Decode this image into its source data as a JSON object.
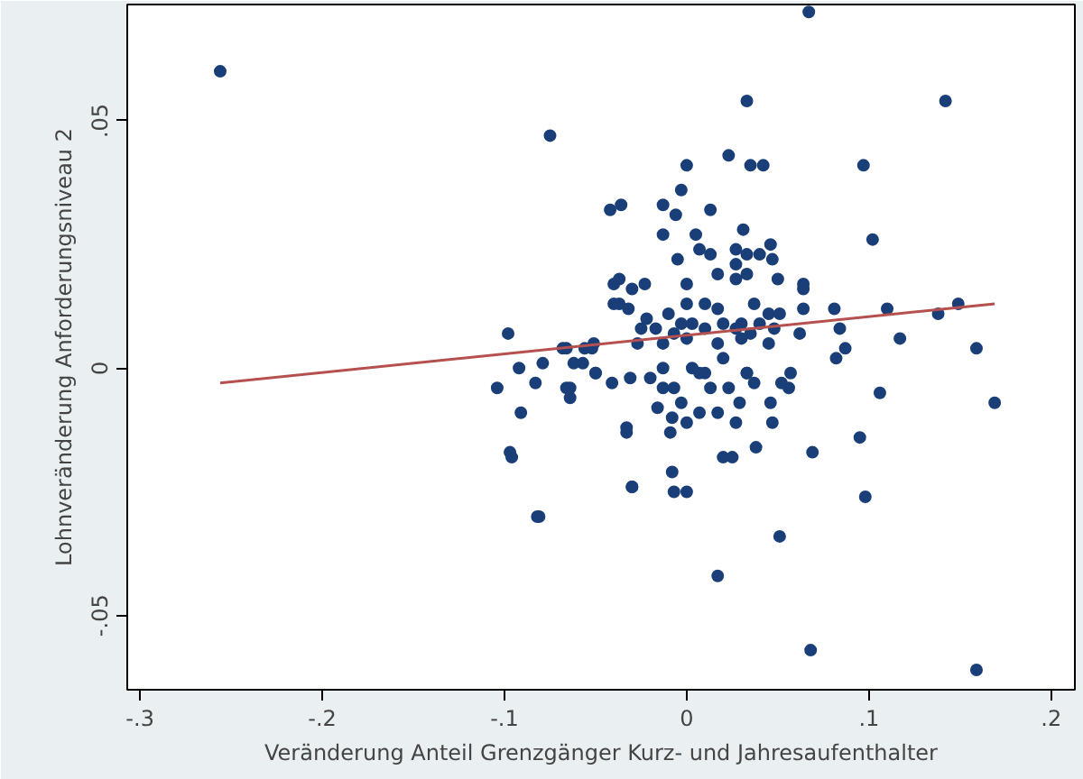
{
  "chart_data": {
    "type": "scatter",
    "xlabel": "Veränderung Anteil Grenzgänger Kurz- und Jahresaufenthalter",
    "ylabel": "Lohnveränderung Anforderungsniveau 2",
    "xlim": [
      -0.307,
      0.213
    ],
    "ylim": [
      -0.065,
      0.0735
    ],
    "xticks": [
      {
        "value": -0.3,
        "label": "-.3"
      },
      {
        "value": -0.2,
        "label": "-.2"
      },
      {
        "value": -0.1,
        "label": "-.1"
      },
      0,
      {
        "value": 0.1,
        "label": ".1"
      },
      {
        "value": 0.2,
        "label": ".2"
      }
    ],
    "yticks": [
      {
        "value": -0.05,
        "label": "-.05"
      },
      0,
      {
        "value": 0.05,
        "label": ".05"
      }
    ],
    "grid": false,
    "series": [
      {
        "marker": "circle",
        "color": "#1a3f78",
        "x": [
          -0.256,
          0.033,
          0.067,
          0.142,
          -0.075,
          -0.104,
          -0.098,
          -0.097,
          -0.082,
          -0.091,
          -0.079,
          -0.068,
          -0.064,
          -0.057,
          -0.052,
          -0.041,
          -0.03,
          -0.033,
          -0.037,
          -0.04,
          -0.042,
          -0.036,
          0,
          0.023,
          0.035,
          0.042,
          0.097,
          -0.003,
          -0.013,
          -0.006,
          0.013,
          -0.013,
          0.005,
          0.031,
          0.046,
          0.007,
          0.013,
          0.027,
          0.033,
          0.04,
          -0.005,
          0.047,
          0.027,
          0.017,
          0.033,
          -0.037,
          -0.023,
          -0.03,
          0,
          0.027,
          0.05,
          0.064,
          0.064,
          -0.04,
          0,
          0.01,
          0.017,
          0.037,
          0.045,
          0.064,
          0.081,
          -0.032,
          -0.022,
          -0.01,
          -0.003,
          0.003,
          0.02,
          0.03,
          0.04,
          0.051,
          -0.025,
          -0.017,
          -0.007,
          0.01,
          0.027,
          0.035,
          0.048,
          0.062,
          -0.051,
          -0.066,
          -0.056,
          -0.027,
          -0.013,
          0,
          0.017,
          0.03,
          0.045,
          -0.092,
          -0.062,
          -0.05,
          -0.013,
          0.003,
          0.01,
          0.02,
          0.033,
          0.082,
          0.087,
          -0.083,
          -0.066,
          -0.064,
          -0.05,
          -0.031,
          -0.02,
          -0.013,
          -0.007,
          0.007,
          0.013,
          0.023,
          0.033,
          0.037,
          0.052,
          0.056,
          0.057,
          -0.016,
          -0.003,
          -0.008,
          0,
          0.007,
          0.017,
          0.027,
          0.029,
          0.046,
          0.047,
          -0.033,
          -0.009,
          -0.096,
          0.02,
          0.025,
          0.038,
          0.069,
          0.095,
          -0.008,
          -0.03,
          -0.007,
          0,
          0.098,
          -0.081,
          0.051,
          0.017,
          0.068,
          0.159,
          0.169,
          0.159,
          0.149,
          0.138,
          0.11,
          0.117,
          0.106,
          0.102,
          0.084
        ],
        "values": [
          0.06,
          0.054,
          0.072,
          0.054,
          0.047,
          -0.004,
          0.007,
          -0.017,
          -0.03,
          -0.009,
          0.001,
          0.004,
          -0.004,
          0.001,
          0.004,
          -0.003,
          -0.024,
          -0.013,
          0.013,
          0.017,
          0.032,
          0.033,
          0.041,
          0.043,
          0.041,
          0.041,
          0.041,
          0.036,
          0.033,
          0.031,
          0.032,
          0.027,
          0.027,
          0.028,
          0.025,
          0.024,
          0.023,
          0.024,
          0.023,
          0.023,
          0.022,
          0.022,
          0.021,
          0.019,
          0.019,
          0.018,
          0.017,
          0.016,
          0.017,
          0.018,
          0.018,
          0.017,
          0.016,
          0.013,
          0.013,
          0.013,
          0.012,
          0.013,
          0.011,
          0.012,
          0.012,
          0.012,
          0.01,
          0.011,
          0.009,
          0.009,
          0.009,
          0.009,
          0.009,
          0.011,
          0.008,
          0.008,
          0.007,
          0.008,
          0.008,
          0.007,
          0.008,
          0.007,
          0.005,
          0.004,
          0.004,
          0.005,
          0.005,
          0.006,
          0.005,
          0.006,
          0.005,
          0,
          0.001,
          -0.001,
          0,
          0,
          -0.001,
          0.002,
          -0.001,
          0.002,
          0.004,
          -0.003,
          -0.004,
          -0.006,
          -0.001,
          -0.002,
          -0.002,
          -0.004,
          -0.004,
          -0.001,
          -0.004,
          -0.004,
          -0.001,
          -0.003,
          -0.003,
          -0.004,
          -0.001,
          -0.008,
          -0.007,
          -0.01,
          -0.011,
          -0.009,
          -0.009,
          -0.011,
          -0.007,
          -0.007,
          -0.011,
          -0.012,
          -0.013,
          -0.018,
          -0.018,
          -0.018,
          -0.016,
          -0.017,
          -0.014,
          -0.021,
          -0.024,
          -0.025,
          -0.025,
          -0.026,
          -0.03,
          -0.034,
          -0.042,
          -0.057,
          -0.061,
          -0.007,
          0.004,
          0.013,
          0.011,
          0.012,
          0.006,
          -0.005,
          0.026,
          0.008
        ]
      },
      {
        "type": "line",
        "color": "#b5504f",
        "x": [
          -0.256,
          0.169
        ],
        "values": [
          -0.003,
          0.013
        ]
      }
    ]
  }
}
